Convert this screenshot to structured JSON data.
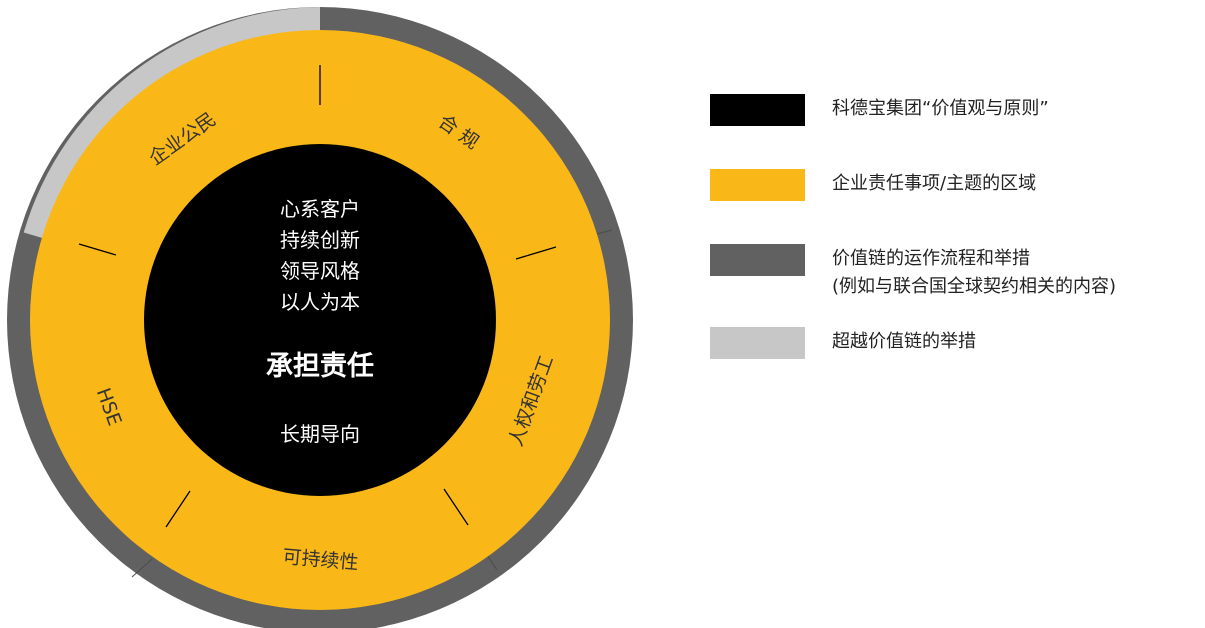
{
  "colors": {
    "black_core": "#000000",
    "yellow_ring": "#f9b817",
    "dark_gray_ring": "#616161",
    "light_gray_ring": "#c7c7c7",
    "white_text": "#ffffff",
    "dark_text": "#333333"
  },
  "center": {
    "values": [
      "心系客户",
      "持续创新",
      "领导风格",
      "以人为本"
    ],
    "main_title": "承担责任",
    "footer": "长期导向"
  },
  "ring_labels": {
    "corporate_citizen": "企业公民",
    "compliance": "合 规",
    "human_rights": "人权和劳工",
    "sustainability": "可持续性",
    "hse": "HSE"
  },
  "legend": [
    {
      "color": "#000000",
      "text": "科德宝集团“价值观与原则”"
    },
    {
      "color": "#f9b817",
      "text": "企业责任事项/主题的区域"
    },
    {
      "color": "#616161",
      "text": "价值链的运作流程和举措",
      "text2": "(例如与联合国全球契约相关的内容)"
    },
    {
      "color": "#c7c7c7",
      "text": "超越价值链的举措"
    }
  ]
}
